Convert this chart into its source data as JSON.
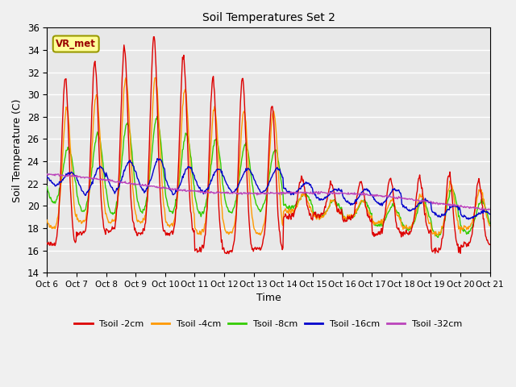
{
  "title": "Soil Temperatures Set 2",
  "xlabel": "Time",
  "ylabel": "Soil Temperature (C)",
  "ylim": [
    14,
    36
  ],
  "yticks": [
    14,
    16,
    18,
    20,
    22,
    24,
    26,
    28,
    30,
    32,
    34,
    36
  ],
  "x_labels": [
    "Oct 6",
    "Oct 7",
    "Oct 8",
    "Oct 9",
    "Oct 10",
    "Oct 11",
    "Oct 12",
    "Oct 13",
    "Oct 14",
    "Oct 15",
    "Oct 16",
    "Oct 17",
    "Oct 18",
    "Oct 19",
    "Oct 20",
    "Oct 21"
  ],
  "colors": {
    "Tsoil -2cm": "#dd0000",
    "Tsoil -4cm": "#ff9900",
    "Tsoil -8cm": "#33cc00",
    "Tsoil -16cm": "#0000cc",
    "Tsoil -32cm": "#bb44bb"
  },
  "plot_bg": "#e8e8e8",
  "fig_bg": "#f0f0f0",
  "annotation_text": "VR_met",
  "grid_color": "#ffffff",
  "annotation_bg": "#ffff99",
  "annotation_edge": "#999900"
}
